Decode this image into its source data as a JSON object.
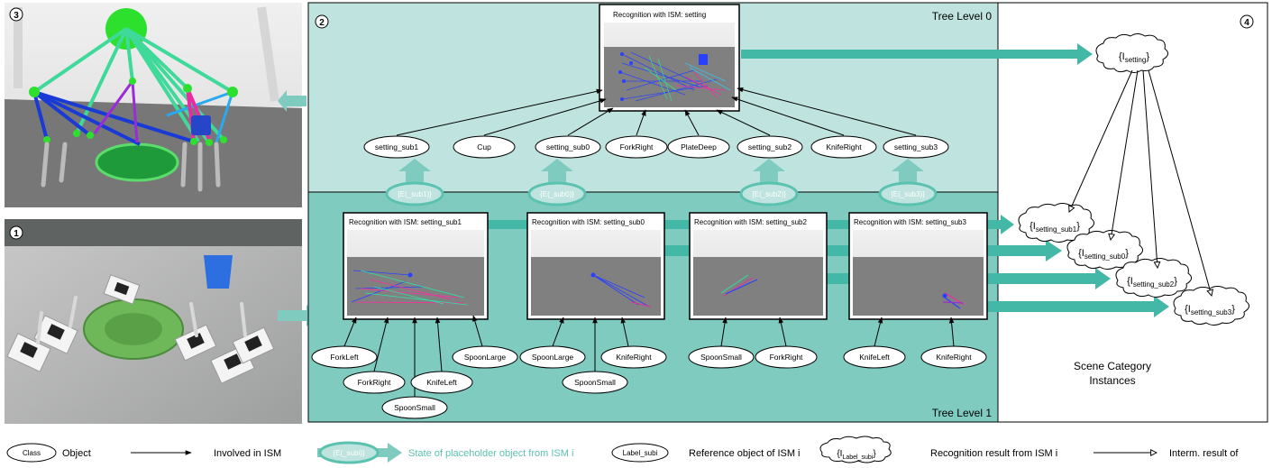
{
  "panels": {
    "p1": "1",
    "p2": "2",
    "p3": "3",
    "p4": "4"
  },
  "tree": {
    "level0": "Tree Level 0",
    "level1": "Tree Level 1"
  },
  "top_ism": {
    "title": "Recognition with ISM: setting",
    "inputs": [
      "setting_sub1",
      "Cup",
      "setting_sub0",
      "ForkRight",
      "PlateDeep",
      "setting_sub2",
      "KnifeRight",
      "setting_sub3"
    ]
  },
  "placeholders": [
    "{E(_sub1)}",
    "{E(_sub0)}",
    "{E(_sub2)}",
    "{E(_sub3)}"
  ],
  "sub_isms": [
    {
      "title": "Recognition with ISM: setting_sub1",
      "inputs": [
        "ForkLeft",
        "ForkRight",
        "SpoonSmall",
        "KnifeLeft",
        "SpoonLarge"
      ]
    },
    {
      "title": "Recognition with ISM: setting_sub0",
      "inputs": [
        "SpoonLarge",
        "SpoonSmall",
        "KnifeRight"
      ]
    },
    {
      "title": "Recognition with ISM: setting_sub2",
      "inputs": [
        "SpoonSmall",
        "ForkRight"
      ]
    },
    {
      "title": "Recognition with ISM: setting_sub3",
      "inputs": [
        "KnifeLeft",
        "KnifeRight"
      ]
    }
  ],
  "results": {
    "top": {
      "base": "{I",
      "sub": "setting",
      "end": "}"
    },
    "subs": [
      {
        "base": "{I",
        "sub": "setting_sub1",
        "end": "}"
      },
      {
        "base": "{I",
        "sub": "setting_sub0",
        "end": "}"
      },
      {
        "base": "{I",
        "sub": "setting_sub2",
        "end": "}"
      },
      {
        "base": "{I",
        "sub": "setting_sub3",
        "end": "}"
      }
    ]
  },
  "scene_label": [
    "Scene Category",
    "Instances"
  ],
  "legend": {
    "class_label": "Class",
    "object": "Object",
    "involved": "Involved in ISM",
    "placeholder_sym": "{E(_subi)}",
    "placeholder_text": "State of placeholder object from ISM i",
    "ref_sym": "Label_subi",
    "ref_text": "Reference object of ISM i",
    "result_sym": {
      "base": "{I",
      "sub": "Label_subi",
      "end": "}"
    },
    "result_text": "Recognition result from ISM i",
    "interm": "Interm. result of"
  },
  "colors": {
    "teal_light": "#bfe3de",
    "teal_dark": "#7fcbc0",
    "arrow_teal": "#44b8a6",
    "placeholder_text": "#5cc2b0"
  }
}
